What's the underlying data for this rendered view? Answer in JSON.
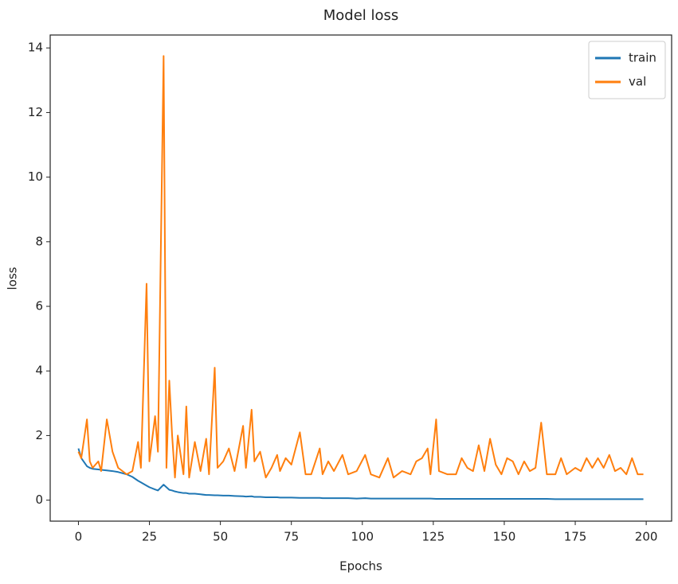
{
  "chart_data": {
    "type": "line",
    "title": "Model loss",
    "x_label": "Epochs",
    "y_label": "loss",
    "x": [
      0,
      1,
      3,
      4,
      5,
      7,
      8,
      10,
      12,
      14,
      17,
      19,
      21,
      22,
      24,
      25,
      27,
      28,
      30,
      31,
      32,
      33,
      34,
      35,
      37,
      38,
      39,
      41,
      43,
      45,
      46,
      48,
      49,
      51,
      53,
      55,
      58,
      59,
      61,
      62,
      64,
      66,
      68,
      70,
      71,
      73,
      75,
      78,
      80,
      82,
      85,
      86,
      88,
      90,
      93,
      95,
      98,
      101,
      103,
      106,
      109,
      111,
      114,
      117,
      119,
      121,
      123,
      124,
      126,
      127,
      130,
      133,
      135,
      137,
      139,
      141,
      143,
      145,
      147,
      149,
      151,
      153,
      155,
      157,
      159,
      161,
      163,
      165,
      168,
      170,
      172,
      175,
      177,
      179,
      181,
      183,
      185,
      187,
      189,
      191,
      193,
      195,
      197,
      199
    ],
    "series": [
      {
        "name": "train",
        "color": "#1f77b4",
        "values": [
          1.6,
          1.3,
          1.05,
          1.0,
          0.97,
          0.95,
          0.94,
          0.92,
          0.9,
          0.87,
          0.8,
          0.72,
          0.6,
          0.55,
          0.45,
          0.4,
          0.33,
          0.3,
          0.48,
          0.4,
          0.32,
          0.3,
          0.27,
          0.25,
          0.22,
          0.22,
          0.2,
          0.2,
          0.18,
          0.16,
          0.16,
          0.15,
          0.15,
          0.14,
          0.14,
          0.13,
          0.12,
          0.11,
          0.12,
          0.1,
          0.1,
          0.09,
          0.09,
          0.09,
          0.08,
          0.08,
          0.08,
          0.07,
          0.07,
          0.07,
          0.07,
          0.06,
          0.06,
          0.06,
          0.06,
          0.06,
          0.05,
          0.06,
          0.05,
          0.05,
          0.05,
          0.05,
          0.05,
          0.05,
          0.05,
          0.05,
          0.05,
          0.05,
          0.04,
          0.04,
          0.04,
          0.04,
          0.04,
          0.04,
          0.04,
          0.04,
          0.04,
          0.04,
          0.04,
          0.04,
          0.04,
          0.04,
          0.04,
          0.04,
          0.04,
          0.04,
          0.04,
          0.04,
          0.03,
          0.03,
          0.03,
          0.03,
          0.03,
          0.03,
          0.03,
          0.03,
          0.03,
          0.03,
          0.03,
          0.03,
          0.03,
          0.03,
          0.03,
          0.03
        ]
      },
      {
        "name": "val",
        "color": "#ff7f0e",
        "values": [
          1.5,
          1.3,
          2.5,
          1.2,
          1.0,
          1.2,
          0.9,
          2.5,
          1.5,
          1.0,
          0.8,
          0.9,
          1.8,
          1.0,
          6.7,
          1.2,
          2.6,
          1.5,
          13.75,
          1.0,
          3.7,
          2.0,
          0.7,
          2.0,
          0.8,
          2.9,
          0.7,
          1.8,
          0.9,
          1.9,
          0.8,
          4.1,
          1.0,
          1.2,
          1.6,
          0.9,
          2.3,
          1.0,
          2.8,
          1.2,
          1.5,
          0.7,
          1.0,
          1.4,
          0.9,
          1.3,
          1.1,
          2.1,
          0.8,
          0.8,
          1.6,
          0.8,
          1.2,
          0.9,
          1.4,
          0.8,
          0.9,
          1.4,
          0.8,
          0.7,
          1.3,
          0.7,
          0.9,
          0.8,
          1.2,
          1.3,
          1.6,
          0.8,
          2.5,
          0.9,
          0.8,
          0.8,
          1.3,
          1.0,
          0.9,
          1.7,
          0.9,
          1.9,
          1.1,
          0.8,
          1.3,
          1.2,
          0.8,
          1.2,
          0.9,
          1.0,
          2.4,
          0.8,
          0.8,
          1.3,
          0.8,
          1.0,
          0.9,
          1.3,
          1.0,
          1.3,
          1.0,
          1.4,
          0.9,
          1.0,
          0.8,
          1.3,
          0.8,
          0.8
        ]
      }
    ],
    "xlim": [
      -9.95,
      208.95
    ],
    "xticks": [
      0,
      25,
      50,
      75,
      100,
      125,
      150,
      175,
      200
    ],
    "ylim": [
      -0.65,
      14.4
    ],
    "yticks": [
      0,
      2,
      4,
      6,
      8,
      10,
      12,
      14
    ],
    "legend": "upper right"
  }
}
